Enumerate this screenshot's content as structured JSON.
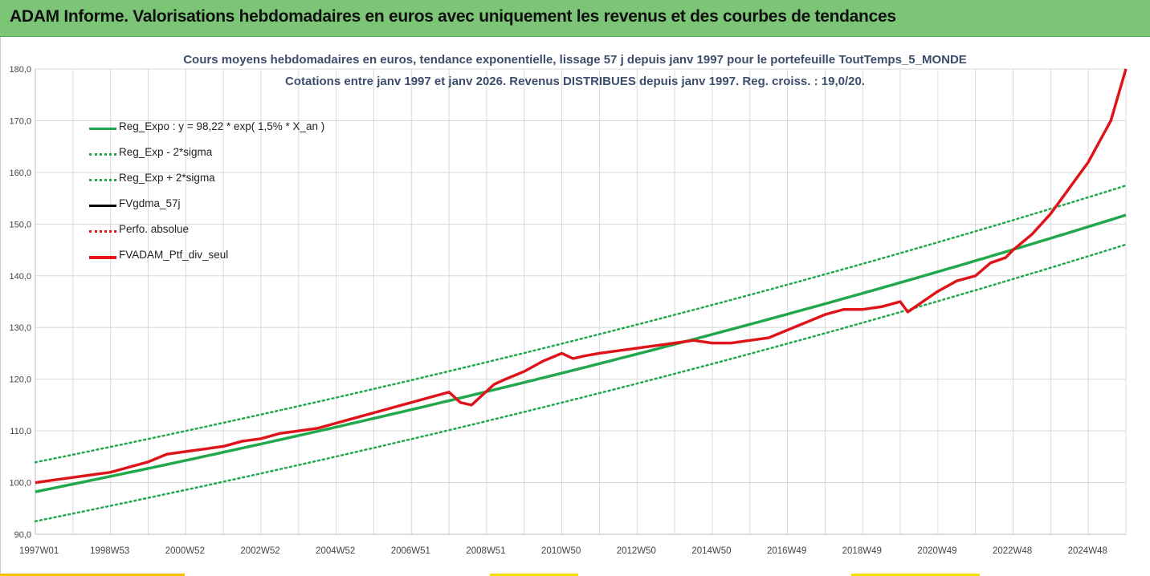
{
  "banner": {
    "title": "ADAM Informe. Valorisations hebdomadaires en euros avec uniquement les revenus et des courbes de tendances"
  },
  "colors": {
    "banner": "#7cc576",
    "green": "#22a84c",
    "black": "#000000",
    "red": "#e8141a"
  },
  "chart_data": {
    "type": "line",
    "title": "Cours moyens hebdomadaires  en euros, tendance exponentielle, lissage 57 j depuis janv 1997 pour le portefeuille ToutTemps_5_MONDE",
    "subtitle": "Cotations entre janv 1997 et janv 2026. Revenus DISTRIBUES depuis janv 1997. Reg. croiss. : 19,0/20.",
    "xlabel": "",
    "ylabel": "",
    "ylim": [
      90,
      180
    ],
    "y_ticks": [
      "90,0",
      "100,0",
      "110,0",
      "120,0",
      "130,0",
      "140,0",
      "150,0",
      "160,0",
      "170,0",
      "180,0"
    ],
    "x_range": [
      1997.0,
      2026.0
    ],
    "x_tick_labels": [
      "1997W01",
      "1998W53",
      "2000W52",
      "2002W52",
      "2004W52",
      "2006W51",
      "2008W51",
      "2010W50",
      "2012W50",
      "2014W50",
      "2016W49",
      "2018W49",
      "2020W49",
      "2022W48",
      "2024W48"
    ],
    "regression": {
      "a": 98.22,
      "rate_pct": 1.5,
      "start_year": 1997,
      "sigma_offset": 5.7
    },
    "legend": [
      {
        "key": "reg_expo",
        "label": "Reg_Expo : y = 98,22 * exp( 1,5% *  X_an )",
        "color": "#22a84c",
        "style": "solid"
      },
      {
        "key": "reg_minus",
        "label": "Reg_Exp - 2*sigma",
        "color": "#22a84c",
        "style": "dotted"
      },
      {
        "key": "reg_plus",
        "label": "Reg_Exp + 2*sigma",
        "color": "#22a84c",
        "style": "dotted"
      },
      {
        "key": "fvgdma",
        "label": "FVgdma_57j",
        "color": "#000000",
        "style": "solid"
      },
      {
        "key": "perfo",
        "label": "Perfo. absolue",
        "color": "#e8141a",
        "style": "dotted"
      },
      {
        "key": "ptf",
        "label": "FVADAM_Ptf_div_seul",
        "color": "#e8141a",
        "style": "solid"
      }
    ],
    "series": [
      {
        "name": "FVADAM_Ptf_div_seul",
        "x": [
          1997.0,
          1997.5,
          1998.0,
          1998.5,
          1999.0,
          1999.5,
          2000.0,
          2000.5,
          2001.0,
          2001.5,
          2002.0,
          2002.5,
          2003.0,
          2003.5,
          2004.0,
          2004.5,
          2005.0,
          2005.5,
          2006.0,
          2006.5,
          2007.0,
          2007.5,
          2008.0,
          2008.3,
          2008.6,
          2008.9,
          2009.2,
          2009.5,
          2010.0,
          2010.5,
          2011.0,
          2011.3,
          2011.6,
          2012.0,
          2012.5,
          2013.0,
          2013.5,
          2014.0,
          2014.5,
          2015.0,
          2015.5,
          2016.0,
          2016.5,
          2017.0,
          2017.5,
          2018.0,
          2018.5,
          2019.0,
          2019.5,
          2020.0,
          2020.2,
          2020.5,
          2021.0,
          2021.5,
          2022.0,
          2022.4,
          2022.8,
          2023.0,
          2023.5,
          2024.0,
          2024.5,
          2025.0,
          2025.3,
          2025.6,
          2025.8,
          2026.0
        ],
        "values": [
          100.0,
          100.5,
          101.0,
          101.5,
          102.0,
          103.0,
          104.0,
          105.5,
          106.0,
          106.5,
          107.0,
          108.0,
          108.5,
          109.5,
          110.0,
          110.5,
          111.5,
          112.5,
          113.5,
          114.5,
          115.5,
          116.5,
          117.5,
          115.5,
          115.0,
          117.0,
          119.0,
          120.0,
          121.5,
          123.5,
          125.0,
          124.0,
          124.5,
          125.0,
          125.5,
          126.0,
          126.5,
          127.0,
          127.5,
          127.0,
          127.0,
          127.5,
          128.0,
          129.5,
          131.0,
          132.5,
          133.5,
          133.5,
          134.0,
          135.0,
          133.0,
          134.5,
          137.0,
          139.0,
          140.0,
          142.5,
          143.5,
          145.0,
          148.0,
          152.0,
          157.0,
          162.0,
          166.0,
          170.0,
          175.0,
          180.0
        ]
      }
    ]
  }
}
